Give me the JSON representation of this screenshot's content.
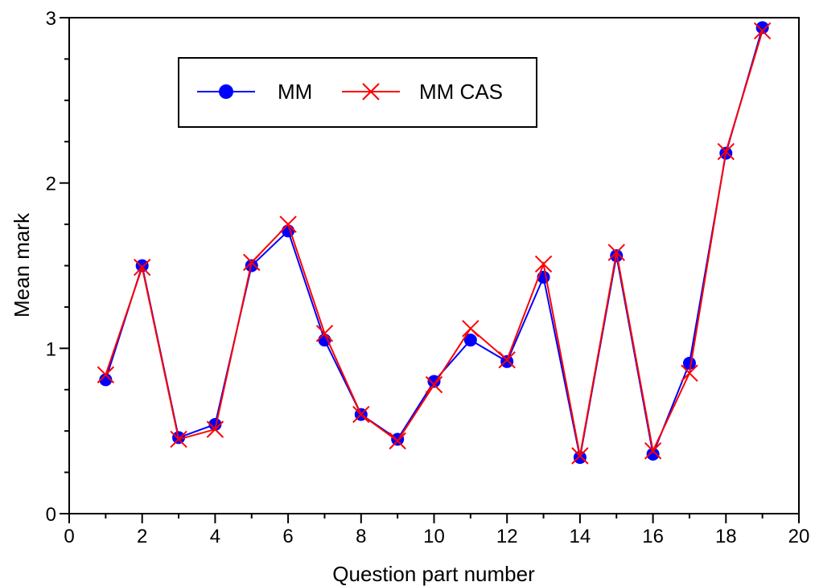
{
  "chart_data": {
    "type": "line",
    "xlabel": "Question part number",
    "ylabel": "Mean mark",
    "xlim": [
      0,
      20
    ],
    "ylim": [
      0,
      3
    ],
    "x_ticks": [
      0,
      2,
      4,
      6,
      8,
      10,
      12,
      14,
      16,
      18,
      20
    ],
    "y_ticks": [
      0,
      1,
      2,
      3
    ],
    "x_minor_step": 1,
    "y_minor_step": 0.25,
    "grid": false,
    "legend_position": "top-left",
    "x": [
      1,
      2,
      3,
      4,
      5,
      6,
      7,
      8,
      9,
      10,
      11,
      12,
      13,
      14,
      15,
      16,
      17,
      18,
      19
    ],
    "series": [
      {
        "name": "MM",
        "marker": "circle",
        "color": "#0000ff",
        "values": [
          0.81,
          1.5,
          0.46,
          0.54,
          1.5,
          1.71,
          1.05,
          0.6,
          0.45,
          0.8,
          1.05,
          0.92,
          1.43,
          0.34,
          1.56,
          0.36,
          0.91,
          2.18,
          2.94
        ]
      },
      {
        "name": "MM CAS",
        "marker": "x",
        "color": "#ff0000",
        "values": [
          0.84,
          1.49,
          0.45,
          0.51,
          1.52,
          1.75,
          1.09,
          0.6,
          0.44,
          0.78,
          1.12,
          0.93,
          1.51,
          0.35,
          1.58,
          0.38,
          0.85,
          2.19,
          2.92
        ]
      }
    ]
  }
}
